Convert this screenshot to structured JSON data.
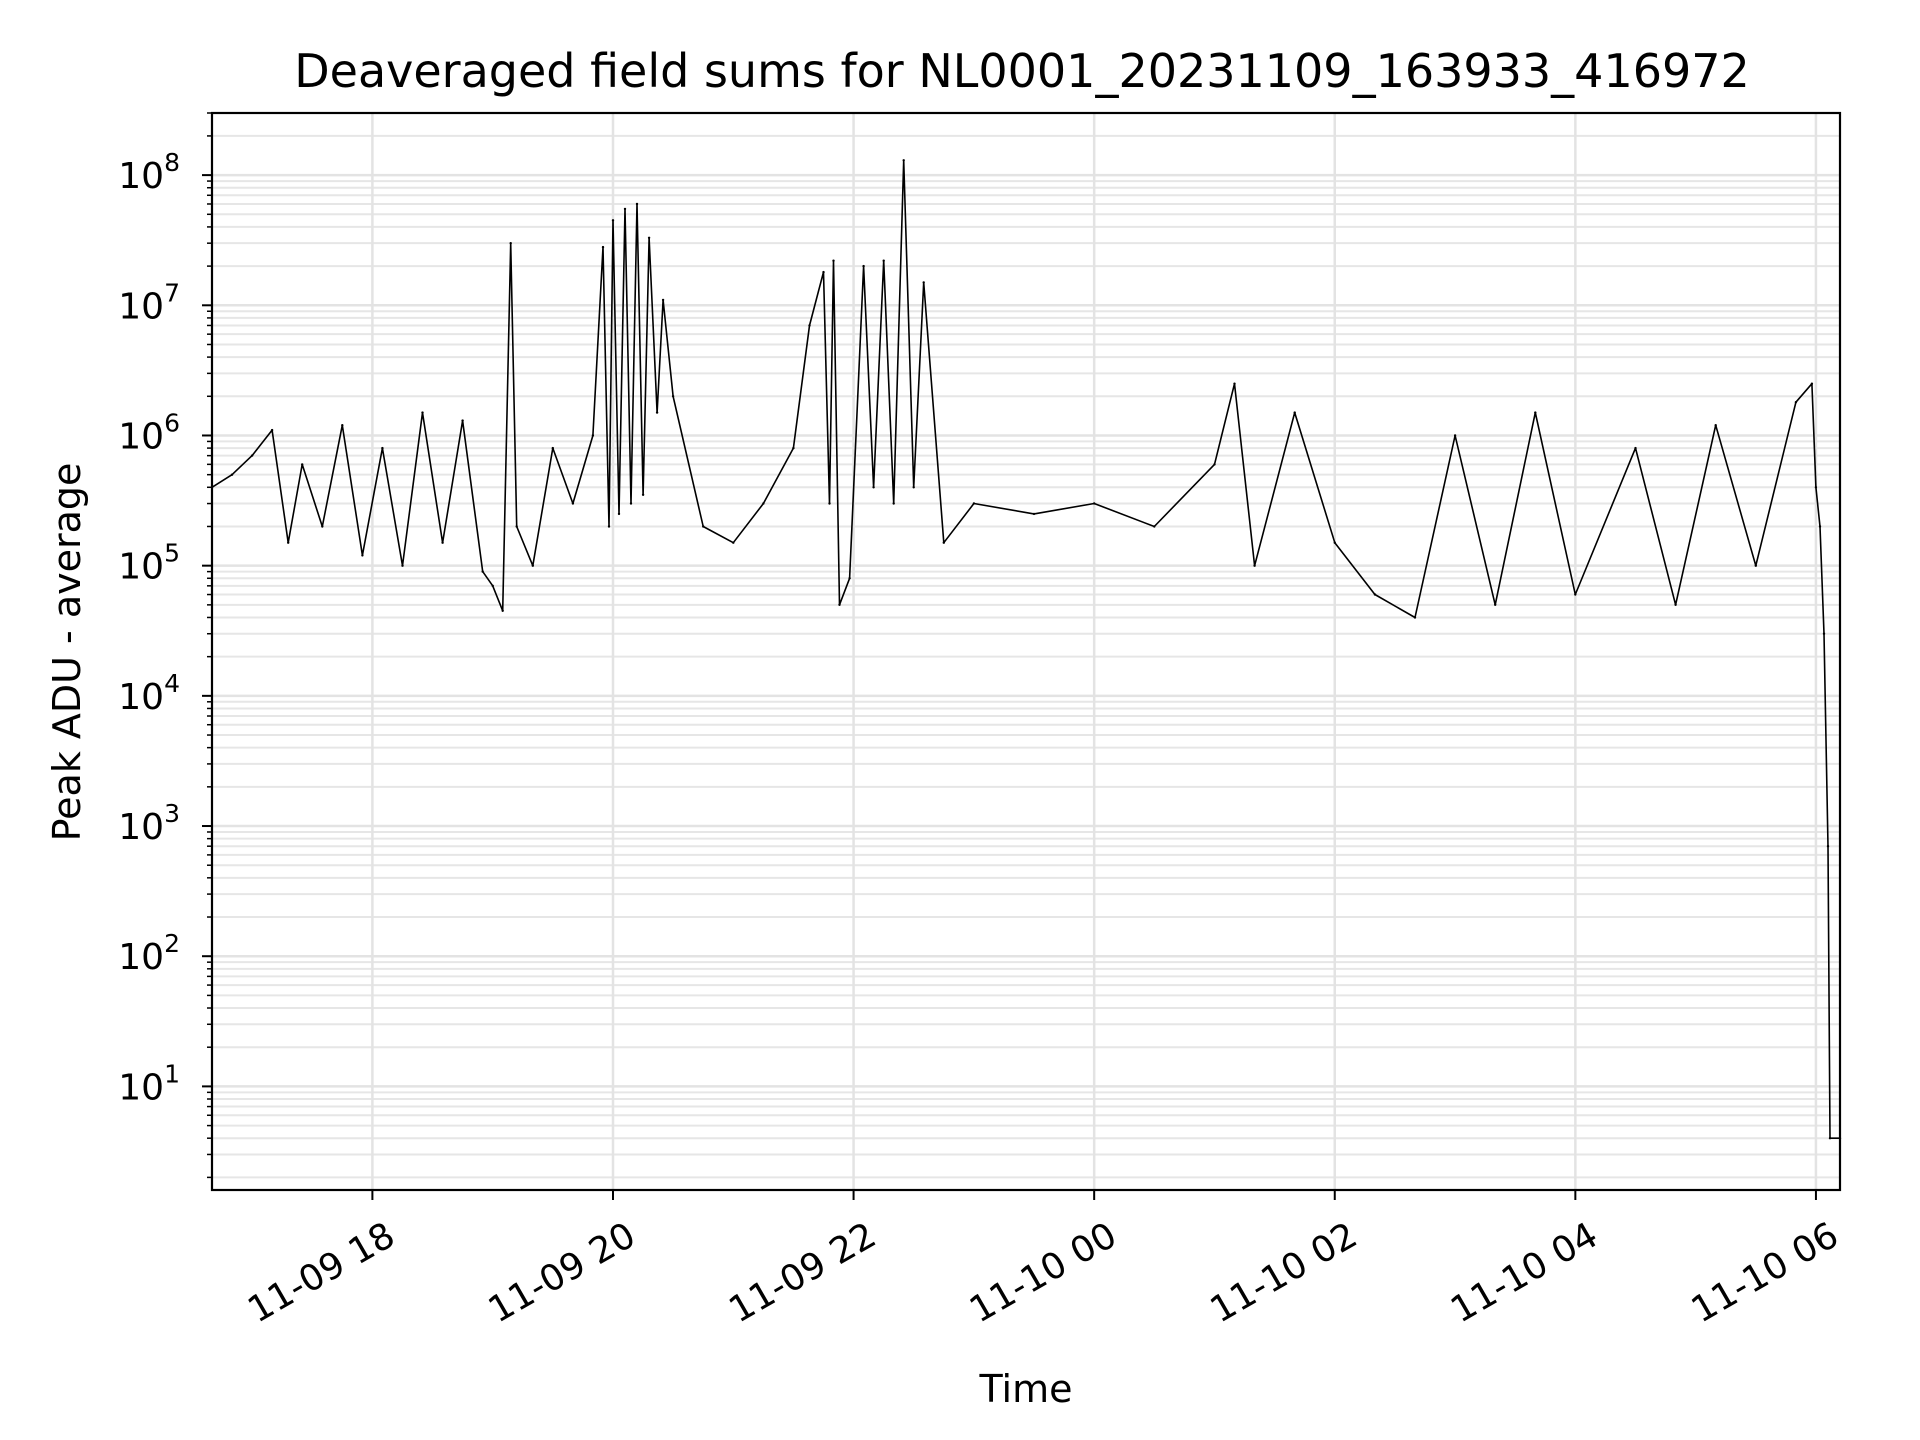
{
  "chart_data": {
    "type": "line",
    "title": "Deaveraged field sums for NL0001_20231109_163933_416972",
    "xlabel": "Time",
    "ylabel": "Peak ADU - average",
    "yscale": "log",
    "grid": true,
    "x_range": [
      "2023-11-09 16:40",
      "2023-11-10 06:12"
    ],
    "ylim": [
      1.6,
      300000000
    ],
    "x_ticks": [
      {
        "value": "2023-11-09 18:00",
        "label": "11-09 18"
      },
      {
        "value": "2023-11-09 20:00",
        "label": "11-09 20"
      },
      {
        "value": "2023-11-09 22:00",
        "label": "11-09 22"
      },
      {
        "value": "2023-11-10 00:00",
        "label": "11-10 00"
      },
      {
        "value": "2023-11-10 02:00",
        "label": "11-10 02"
      },
      {
        "value": "2023-11-10 04:00",
        "label": "11-10 04"
      },
      {
        "value": "2023-11-10 06:00",
        "label": "11-10 06"
      }
    ],
    "y_ticks": [
      {
        "value": 10,
        "base": "10",
        "exp": "1"
      },
      {
        "value": 100,
        "base": "10",
        "exp": "2"
      },
      {
        "value": 1000,
        "base": "10",
        "exp": "3"
      },
      {
        "value": 10000,
        "base": "10",
        "exp": "4"
      },
      {
        "value": 100000,
        "base": "10",
        "exp": "5"
      },
      {
        "value": 1000000,
        "base": "10",
        "exp": "6"
      },
      {
        "value": 10000000,
        "base": "10",
        "exp": "7"
      },
      {
        "value": 100000000,
        "base": "10",
        "exp": "8"
      }
    ],
    "series": [
      {
        "color": "#000000",
        "points": [
          [
            "2023-11-09 16:40",
            400000
          ],
          [
            "2023-11-09 16:50",
            500000
          ],
          [
            "2023-11-09 17:00",
            700000
          ],
          [
            "2023-11-09 17:10",
            1100000
          ],
          [
            "2023-11-09 17:18",
            150000
          ],
          [
            "2023-11-09 17:25",
            600000
          ],
          [
            "2023-11-09 17:35",
            200000
          ],
          [
            "2023-11-09 17:45",
            1200000
          ],
          [
            "2023-11-09 17:55",
            120000
          ],
          [
            "2023-11-09 18:05",
            800000
          ],
          [
            "2023-11-09 18:15",
            100000
          ],
          [
            "2023-11-09 18:25",
            1500000
          ],
          [
            "2023-11-09 18:35",
            150000
          ],
          [
            "2023-11-09 18:45",
            1300000
          ],
          [
            "2023-11-09 18:55",
            90000
          ],
          [
            "2023-11-09 19:00",
            70000
          ],
          [
            "2023-11-09 19:05",
            45000
          ],
          [
            "2023-11-09 19:09",
            30000000
          ],
          [
            "2023-11-09 19:12",
            200000
          ],
          [
            "2023-11-09 19:20",
            100000
          ],
          [
            "2023-11-09 19:30",
            800000
          ],
          [
            "2023-11-09 19:40",
            300000
          ],
          [
            "2023-11-09 19:50",
            1000000
          ],
          [
            "2023-11-09 19:55",
            28000000
          ],
          [
            "2023-11-09 19:58",
            200000
          ],
          [
            "2023-11-09 20:00",
            45000000
          ],
          [
            "2023-11-09 20:03",
            250000
          ],
          [
            "2023-11-09 20:06",
            55000000
          ],
          [
            "2023-11-09 20:09",
            300000
          ],
          [
            "2023-11-09 20:12",
            60000000
          ],
          [
            "2023-11-09 20:15",
            350000
          ],
          [
            "2023-11-09 20:18",
            33000000
          ],
          [
            "2023-11-09 20:22",
            1500000
          ],
          [
            "2023-11-09 20:25",
            11000000
          ],
          [
            "2023-11-09 20:30",
            2000000
          ],
          [
            "2023-11-09 20:45",
            200000
          ],
          [
            "2023-11-09 21:00",
            150000
          ],
          [
            "2023-11-09 21:15",
            300000
          ],
          [
            "2023-11-09 21:30",
            800000
          ],
          [
            "2023-11-09 21:38",
            7000000
          ],
          [
            "2023-11-09 21:45",
            18000000
          ],
          [
            "2023-11-09 21:48",
            300000
          ],
          [
            "2023-11-09 21:50",
            22000000
          ],
          [
            "2023-11-09 21:53",
            50000
          ],
          [
            "2023-11-09 21:58",
            80000
          ],
          [
            "2023-11-09 22:05",
            20000000
          ],
          [
            "2023-11-09 22:10",
            400000
          ],
          [
            "2023-11-09 22:15",
            22000000
          ],
          [
            "2023-11-09 22:20",
            300000
          ],
          [
            "2023-11-09 22:25",
            130000000
          ],
          [
            "2023-11-09 22:30",
            400000
          ],
          [
            "2023-11-09 22:35",
            15000000
          ],
          [
            "2023-11-09 22:45",
            150000
          ],
          [
            "2023-11-09 23:00",
            300000
          ],
          [
            "2023-11-09 23:30",
            250000
          ],
          [
            "2023-11-10 00:00",
            300000
          ],
          [
            "2023-11-10 00:30",
            200000
          ],
          [
            "2023-11-10 01:00",
            600000
          ],
          [
            "2023-11-10 01:10",
            2500000
          ],
          [
            "2023-11-10 01:20",
            100000
          ],
          [
            "2023-11-10 01:40",
            1500000
          ],
          [
            "2023-11-10 02:00",
            150000
          ],
          [
            "2023-11-10 02:20",
            60000
          ],
          [
            "2023-11-10 02:40",
            40000
          ],
          [
            "2023-11-10 03:00",
            1000000
          ],
          [
            "2023-11-10 03:20",
            50000
          ],
          [
            "2023-11-10 03:40",
            1500000
          ],
          [
            "2023-11-10 04:00",
            60000
          ],
          [
            "2023-11-10 04:30",
            800000
          ],
          [
            "2023-11-10 04:50",
            50000
          ],
          [
            "2023-11-10 05:10",
            1200000
          ],
          [
            "2023-11-10 05:30",
            100000
          ],
          [
            "2023-11-10 05:50",
            1800000
          ],
          [
            "2023-11-10 05:58",
            2500000
          ],
          [
            "2023-11-10 06:00",
            400000
          ],
          [
            "2023-11-10 06:02",
            200000
          ],
          [
            "2023-11-10 06:04",
            30000
          ],
          [
            "2023-11-10 06:06",
            700
          ],
          [
            "2023-11-10 06:07",
            4
          ],
          [
            "2023-11-10 06:12",
            4
          ]
        ]
      }
    ]
  }
}
